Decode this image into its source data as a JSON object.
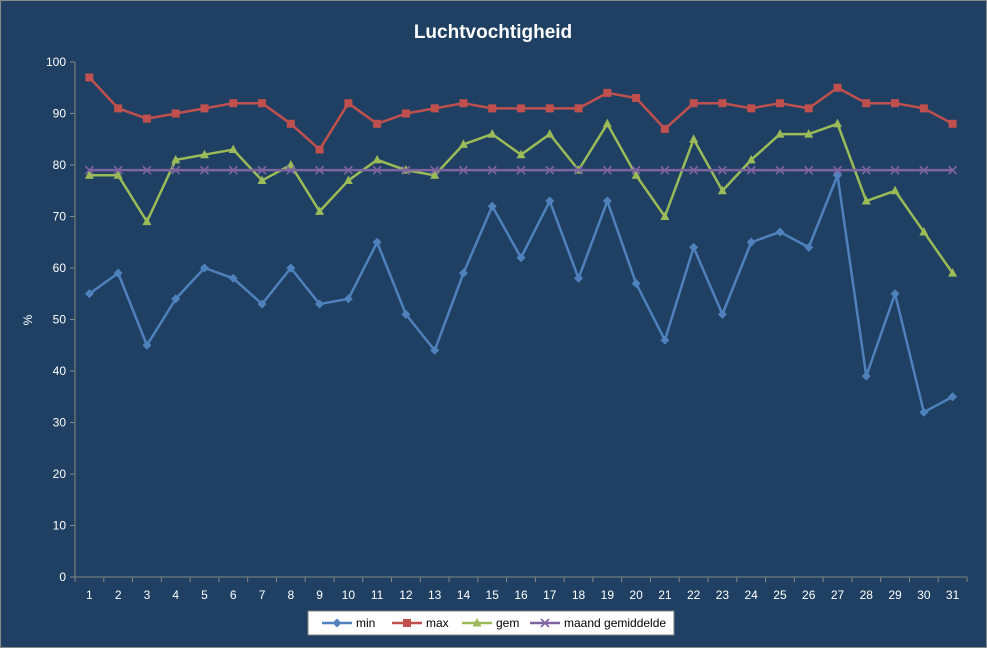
{
  "chart_data": {
    "type": "line",
    "title": "Luchtvochtigheid",
    "xlabel": "",
    "ylabel": "%",
    "ylim": [
      0,
      100
    ],
    "y_ticks": [
      0,
      10,
      20,
      30,
      40,
      50,
      60,
      70,
      80,
      90,
      100
    ],
    "grid": false,
    "legend_position": "bottom",
    "categories": [
      "1",
      "2",
      "3",
      "4",
      "5",
      "6",
      "7",
      "8",
      "9",
      "10",
      "11",
      "12",
      "13",
      "14",
      "15",
      "16",
      "17",
      "18",
      "19",
      "20",
      "21",
      "22",
      "23",
      "24",
      "25",
      "26",
      "27",
      "28",
      "29",
      "30",
      "31"
    ],
    "series": [
      {
        "name": "min",
        "color": "#4f81bd",
        "marker": "diamond",
        "values": [
          55,
          59,
          45,
          54,
          60,
          58,
          53,
          60,
          53,
          54,
          65,
          51,
          44,
          59,
          72,
          62,
          73,
          58,
          73,
          57,
          46,
          64,
          51,
          65,
          67,
          64,
          78,
          39,
          55,
          32,
          35
        ]
      },
      {
        "name": "max",
        "color": "#c0504d",
        "marker": "square",
        "values": [
          97,
          91,
          89,
          90,
          91,
          92,
          92,
          88,
          83,
          92,
          88,
          90,
          91,
          92,
          91,
          91,
          91,
          91,
          94,
          93,
          87,
          92,
          92,
          91,
          92,
          91,
          95,
          92,
          92,
          91,
          88
        ]
      },
      {
        "name": "gem",
        "color": "#9bbb59",
        "marker": "triangle",
        "values": [
          78,
          78,
          69,
          81,
          82,
          83,
          77,
          80,
          71,
          77,
          81,
          79,
          78,
          84,
          86,
          82,
          86,
          79,
          88,
          78,
          70,
          85,
          75,
          81,
          86,
          86,
          88,
          73,
          75,
          67,
          59
        ]
      },
      {
        "name": "maand gemiddelde",
        "color": "#8064a2",
        "marker": "x",
        "values": [
          79,
          79,
          79,
          79,
          79,
          79,
          79,
          79,
          79,
          79,
          79,
          79,
          79,
          79,
          79,
          79,
          79,
          79,
          79,
          79,
          79,
          79,
          79,
          79,
          79,
          79,
          79,
          79,
          79,
          79,
          79
        ]
      }
    ]
  }
}
